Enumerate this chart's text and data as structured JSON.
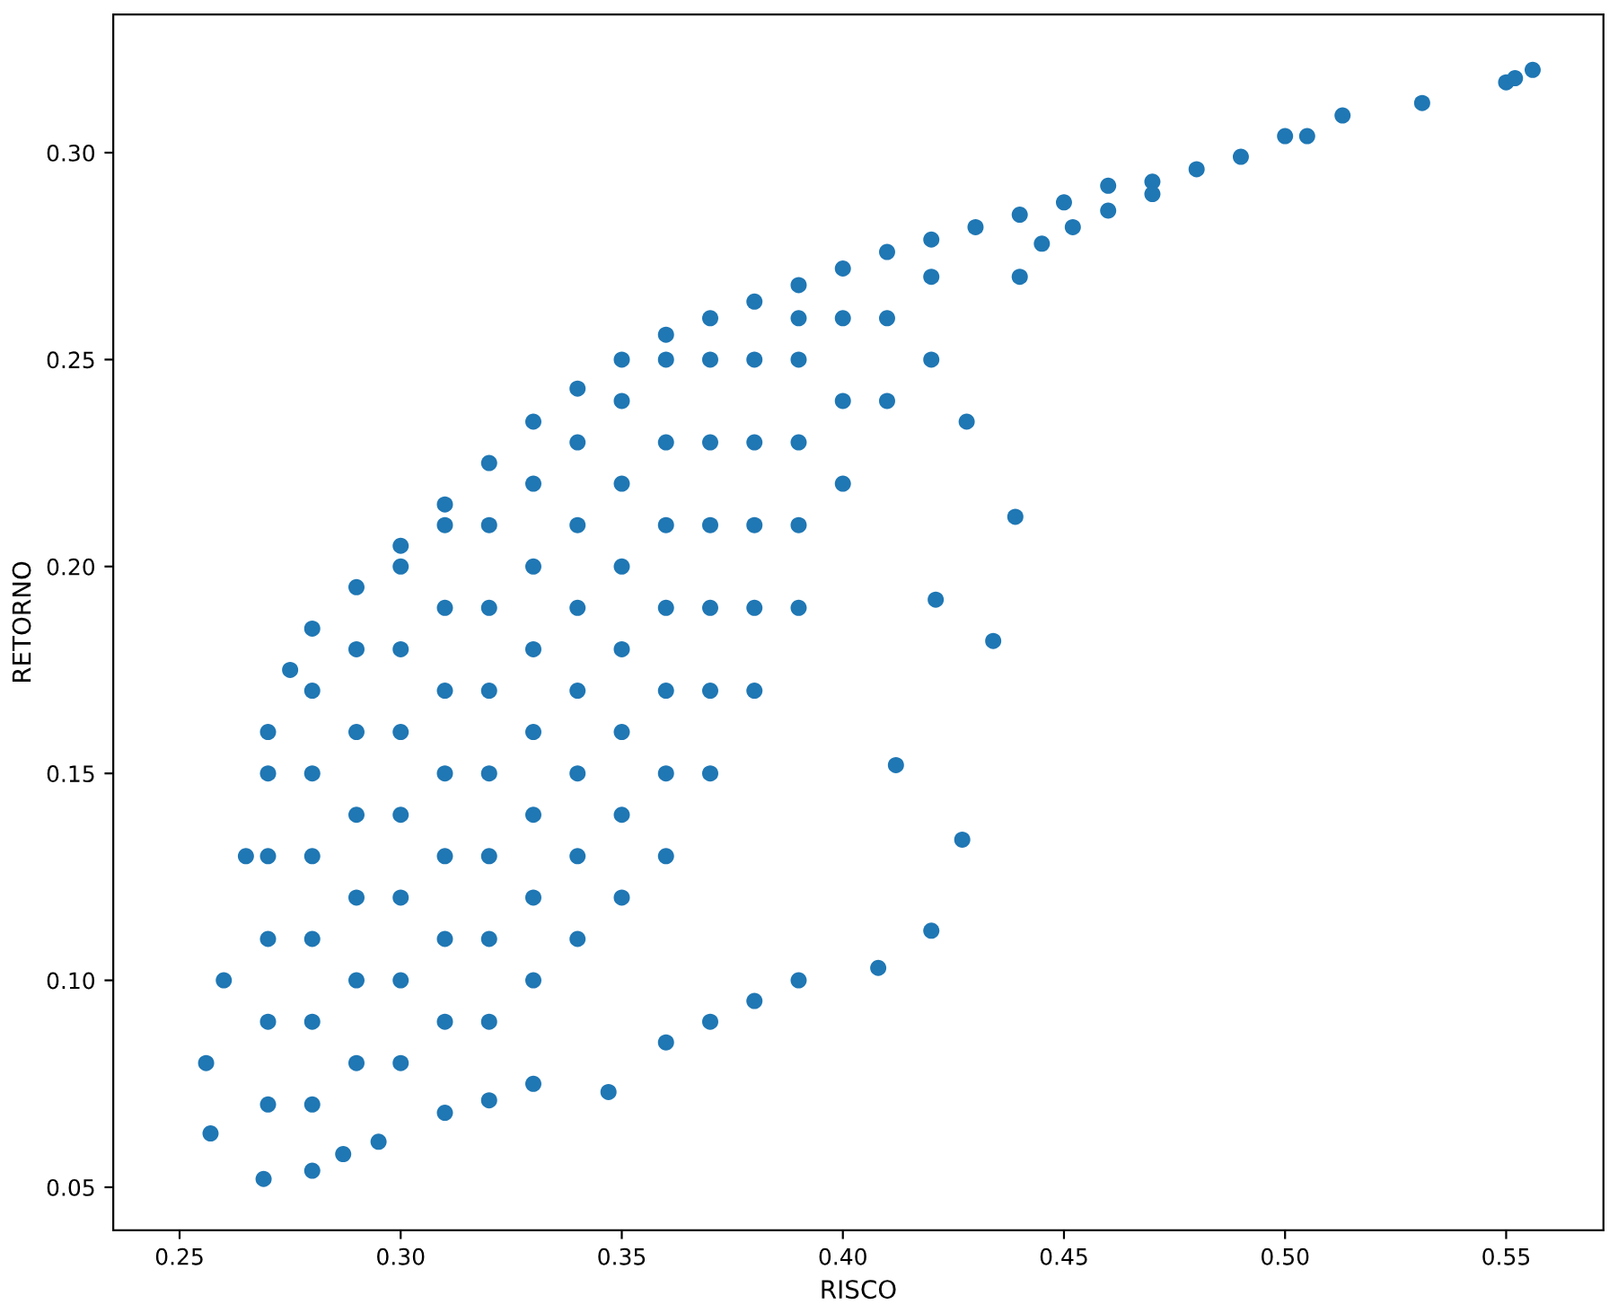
{
  "chart_data": {
    "type": "scatter",
    "xlabel": "RISCO",
    "ylabel": "RETORNO",
    "marker": "circle",
    "grid": false,
    "xlim": [
      0.235,
      0.572
    ],
    "ylim": [
      0.0396,
      0.3334
    ],
    "xticks": [
      {
        "value": 0.25,
        "label": "0.25"
      },
      {
        "value": 0.3,
        "label": "0.30"
      },
      {
        "value": 0.35,
        "label": "0.35"
      },
      {
        "value": 0.4,
        "label": "0.40"
      },
      {
        "value": 0.45,
        "label": "0.45"
      },
      {
        "value": 0.5,
        "label": "0.50"
      },
      {
        "value": 0.55,
        "label": "0.55"
      }
    ],
    "yticks": [
      {
        "value": 0.05,
        "label": "0.05"
      },
      {
        "value": 0.1,
        "label": "0.10"
      },
      {
        "value": 0.15,
        "label": "0.15"
      },
      {
        "value": 0.2,
        "label": "0.20"
      },
      {
        "value": 0.25,
        "label": "0.25"
      },
      {
        "value": 0.3,
        "label": "0.30"
      }
    ],
    "series": [
      {
        "color": "#1f77b4",
        "x": [
          0.26,
          0.265,
          0.27,
          0.275,
          0.28,
          0.29,
          0.3,
          0.31,
          0.32,
          0.33,
          0.34,
          0.35,
          0.36,
          0.37,
          0.38,
          0.39,
          0.4,
          0.41,
          0.42,
          0.43,
          0.44,
          0.45,
          0.46,
          0.47,
          0.48,
          0.49,
          0.5,
          0.505,
          0.513,
          0.531,
          0.55,
          0.552,
          0.556,
          0.256,
          0.257,
          0.269,
          0.28,
          0.287,
          0.295,
          0.31,
          0.32,
          0.33,
          0.347,
          0.36,
          0.37,
          0.38,
          0.39,
          0.408,
          0.42,
          0.427,
          0.434,
          0.439,
          0.428,
          0.421,
          0.412,
          0.44,
          0.445,
          0.452,
          0.46,
          0.47,
          0.27,
          0.27,
          0.27,
          0.27,
          0.27,
          0.28,
          0.28,
          0.28,
          0.28,
          0.28,
          0.28,
          0.29,
          0.29,
          0.29,
          0.29,
          0.29,
          0.29,
          0.3,
          0.3,
          0.3,
          0.3,
          0.3,
          0.3,
          0.3,
          0.31,
          0.31,
          0.31,
          0.31,
          0.31,
          0.31,
          0.31,
          0.32,
          0.32,
          0.32,
          0.32,
          0.32,
          0.32,
          0.32,
          0.33,
          0.33,
          0.33,
          0.33,
          0.33,
          0.33,
          0.33,
          0.34,
          0.34,
          0.34,
          0.34,
          0.34,
          0.34,
          0.34,
          0.35,
          0.35,
          0.35,
          0.35,
          0.35,
          0.35,
          0.35,
          0.36,
          0.36,
          0.36,
          0.36,
          0.36,
          0.36,
          0.36,
          0.37,
          0.37,
          0.37,
          0.37,
          0.37,
          0.37,
          0.38,
          0.38,
          0.38,
          0.38,
          0.38,
          0.39,
          0.39,
          0.39,
          0.39,
          0.39,
          0.4,
          0.4,
          0.4,
          0.41,
          0.41,
          0.42,
          0.42
        ],
        "values": [
          0.1,
          0.13,
          0.16,
          0.175,
          0.185,
          0.195,
          0.205,
          0.215,
          0.225,
          0.235,
          0.243,
          0.25,
          0.256,
          0.26,
          0.264,
          0.268,
          0.272,
          0.276,
          0.279,
          0.282,
          0.285,
          0.288,
          0.292,
          0.293,
          0.296,
          0.299,
          0.304,
          0.304,
          0.309,
          0.312,
          0.317,
          0.318,
          0.32,
          0.08,
          0.063,
          0.052,
          0.054,
          0.058,
          0.061,
          0.068,
          0.071,
          0.075,
          0.073,
          0.085,
          0.09,
          0.095,
          0.1,
          0.103,
          0.112,
          0.134,
          0.182,
          0.212,
          0.235,
          0.192,
          0.152,
          0.27,
          0.278,
          0.282,
          0.286,
          0.29,
          0.07,
          0.09,
          0.11,
          0.13,
          0.15,
          0.07,
          0.09,
          0.11,
          0.13,
          0.15,
          0.17,
          0.08,
          0.1,
          0.12,
          0.14,
          0.16,
          0.18,
          0.08,
          0.1,
          0.12,
          0.14,
          0.16,
          0.18,
          0.2,
          0.09,
          0.11,
          0.13,
          0.15,
          0.17,
          0.19,
          0.21,
          0.09,
          0.11,
          0.13,
          0.15,
          0.17,
          0.19,
          0.21,
          0.1,
          0.12,
          0.14,
          0.16,
          0.18,
          0.2,
          0.22,
          0.11,
          0.13,
          0.15,
          0.17,
          0.19,
          0.21,
          0.23,
          0.12,
          0.14,
          0.16,
          0.18,
          0.2,
          0.22,
          0.24,
          0.13,
          0.15,
          0.17,
          0.19,
          0.21,
          0.23,
          0.25,
          0.15,
          0.17,
          0.19,
          0.21,
          0.23,
          0.25,
          0.17,
          0.19,
          0.21,
          0.23,
          0.25,
          0.19,
          0.21,
          0.23,
          0.25,
          0.26,
          0.22,
          0.24,
          0.26,
          0.24,
          0.26,
          0.25,
          0.27
        ]
      }
    ]
  }
}
